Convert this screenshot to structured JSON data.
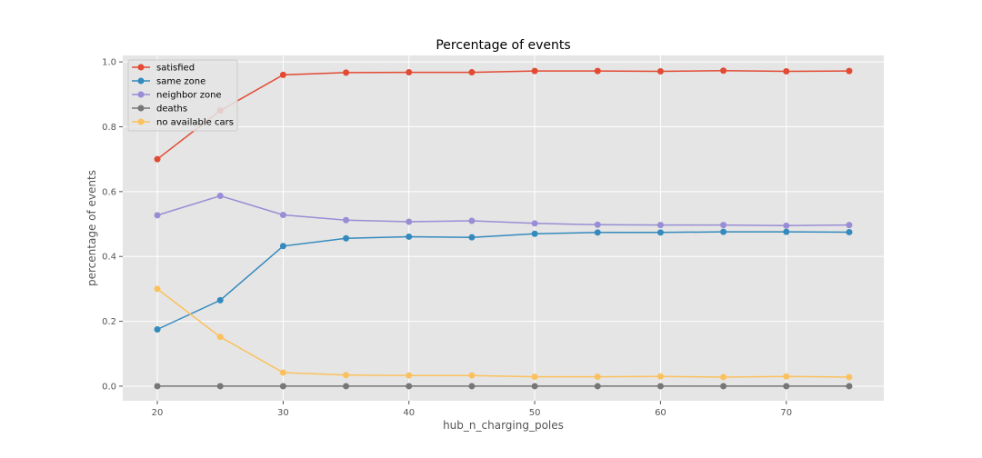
{
  "chart_data": {
    "type": "line",
    "title": "Percentage of events",
    "xlabel": "hub_n_charging_poles",
    "ylabel": "percentage of events",
    "x": [
      20,
      25,
      30,
      35,
      40,
      45,
      50,
      55,
      60,
      65,
      70,
      75
    ],
    "xlim": [
      17.25,
      77.75
    ],
    "ylim": [
      -0.045,
      1.02
    ],
    "xticks": [
      20,
      30,
      40,
      50,
      60,
      70
    ],
    "yticks": [
      0.0,
      0.2,
      0.4,
      0.6,
      0.8,
      1.0
    ],
    "xtick_labels": [
      "20",
      "30",
      "40",
      "50",
      "60",
      "70"
    ],
    "ytick_labels": [
      "0.0",
      "0.2",
      "0.4",
      "0.6",
      "0.8",
      "1.0"
    ],
    "grid": true,
    "legend_position": "top-left",
    "series": [
      {
        "name": "satisfied",
        "color": "#E24A33",
        "values": [
          0.7,
          0.85,
          0.96,
          0.967,
          0.968,
          0.968,
          0.972,
          0.972,
          0.971,
          0.973,
          0.971,
          0.972
        ]
      },
      {
        "name": "same zone",
        "color": "#348ABD",
        "values": [
          0.175,
          0.265,
          0.432,
          0.456,
          0.461,
          0.459,
          0.47,
          0.474,
          0.474,
          0.476,
          0.476,
          0.475
        ]
      },
      {
        "name": "neighbor zone",
        "color": "#988ED5",
        "values": [
          0.527,
          0.587,
          0.528,
          0.512,
          0.507,
          0.51,
          0.502,
          0.498,
          0.497,
          0.497,
          0.495,
          0.497
        ]
      },
      {
        "name": "deaths",
        "color": "#777777",
        "values": [
          0,
          0,
          0,
          0,
          0,
          0,
          0,
          0,
          0,
          0,
          0,
          0
        ]
      },
      {
        "name": "no available cars",
        "color": "#FBC15E",
        "values": [
          0.3,
          0.152,
          0.042,
          0.034,
          0.033,
          0.033,
          0.029,
          0.029,
          0.03,
          0.028,
          0.03,
          0.028
        ]
      }
    ]
  }
}
